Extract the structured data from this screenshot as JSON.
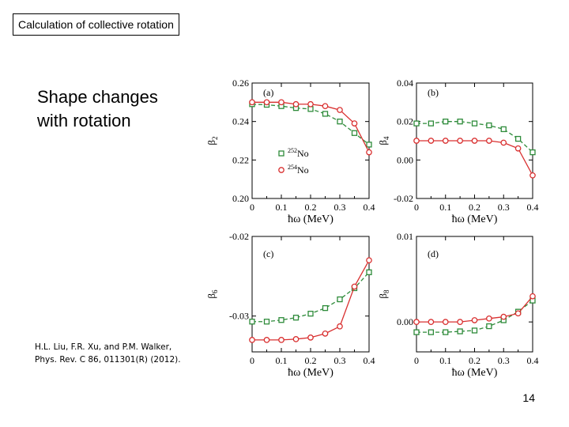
{
  "slide": {
    "header": "Calculation of collective rotation",
    "heading_line1": "Shape changes",
    "heading_line2": "with rotation",
    "citation_line1": "H.L. Liu, F.R. Xu, and P.M. Walker,",
    "citation_line2": "Phys. Rev. C 86, 011301(R) (2012).",
    "page_number": "14"
  },
  "colors": {
    "no252": "#2e8b3a",
    "no254": "#d93030"
  },
  "chart_data": [
    {
      "type": "line",
      "panel": "(a)",
      "ylabel_main": "β",
      "ylabel_sub": "2",
      "xlabel": "ħω (MeV)",
      "x": [
        0,
        0.05,
        0.1,
        0.15,
        0.2,
        0.25,
        0.3,
        0.35,
        0.4
      ],
      "xticks": [
        "0",
        "0.1",
        "0.2",
        "0.3",
        "0.4"
      ],
      "xlim": [
        0,
        0.4
      ],
      "ylim": [
        0.2,
        0.26
      ],
      "yticks": [
        0.2,
        0.22,
        0.24,
        0.26
      ],
      "ytick_labels": [
        "0.20",
        "0.22",
        "0.24",
        "0.26"
      ],
      "legend": [
        {
          "mass": "252",
          "element": "No",
          "marker": "square",
          "style": "dashed"
        },
        {
          "mass": "254",
          "element": "No",
          "marker": "circle",
          "style": "solid"
        }
      ],
      "series": [
        {
          "name": "252No",
          "marker": "square",
          "style": "dashed",
          "values": [
            0.249,
            0.2487,
            0.248,
            0.247,
            0.2465,
            0.244,
            0.24,
            0.234,
            0.228
          ]
        },
        {
          "name": "254No",
          "marker": "circle",
          "style": "solid",
          "values": [
            0.25,
            0.25,
            0.25,
            0.249,
            0.249,
            0.248,
            0.246,
            0.239,
            0.224
          ]
        }
      ]
    },
    {
      "type": "line",
      "panel": "(b)",
      "ylabel_main": "β",
      "ylabel_sub": "4",
      "xlabel": "ħω (MeV)",
      "x": [
        0,
        0.05,
        0.1,
        0.15,
        0.2,
        0.25,
        0.3,
        0.35,
        0.4
      ],
      "xticks": [
        "0",
        "0.1",
        "0.2",
        "0.3",
        "0.4"
      ],
      "xlim": [
        0,
        0.4
      ],
      "ylim": [
        -0.02,
        0.04
      ],
      "yticks": [
        -0.02,
        0.0,
        0.02,
        0.04
      ],
      "ytick_labels": [
        "-0.02",
        "0.00",
        "0.02",
        "0.04"
      ],
      "series": [
        {
          "name": "252No",
          "marker": "square",
          "style": "dashed",
          "values": [
            0.019,
            0.019,
            0.02,
            0.02,
            0.019,
            0.018,
            0.016,
            0.011,
            0.004
          ]
        },
        {
          "name": "254No",
          "marker": "circle",
          "style": "solid",
          "values": [
            0.01,
            0.01,
            0.01,
            0.01,
            0.01,
            0.01,
            0.009,
            0.006,
            -0.008
          ]
        }
      ]
    },
    {
      "type": "line",
      "panel": "(c)",
      "ylabel_main": "β",
      "ylabel_sub": "6",
      "xlabel": "ħω (MeV)",
      "x": [
        0,
        0.05,
        0.1,
        0.15,
        0.2,
        0.25,
        0.3,
        0.35,
        0.4
      ],
      "xticks": [
        "0",
        "0.1",
        "0.2",
        "0.3",
        "0.4"
      ],
      "xlim": [
        0,
        0.4
      ],
      "ylim": [
        -0.0345,
        -0.02
      ],
      "yticks": [
        -0.03,
        -0.02
      ],
      "ytick_labels": [
        "-0.03",
        "-0.02"
      ],
      "series": [
        {
          "name": "252No",
          "marker": "square",
          "style": "dashed",
          "values": [
            -0.0307,
            -0.0307,
            -0.0305,
            -0.0302,
            -0.0297,
            -0.029,
            -0.0279,
            -0.0265,
            -0.0245
          ]
        },
        {
          "name": "254No",
          "marker": "circle",
          "style": "solid",
          "values": [
            -0.033,
            -0.033,
            -0.033,
            -0.0329,
            -0.0327,
            -0.0322,
            -0.0313,
            -0.0263,
            -0.023
          ]
        }
      ]
    },
    {
      "type": "line",
      "panel": "(d)",
      "ylabel_main": "β",
      "ylabel_sub": "8",
      "xlabel": "ħω (MeV)",
      "x": [
        0,
        0.05,
        0.1,
        0.15,
        0.2,
        0.25,
        0.3,
        0.35,
        0.4
      ],
      "xticks": [
        "0",
        "0.1",
        "0.2",
        "0.3",
        "0.4"
      ],
      "xlim": [
        0,
        0.4
      ],
      "ylim": [
        -0.0035,
        0.01
      ],
      "yticks": [
        0.0,
        0.01
      ],
      "ytick_labels": [
        "0.00",
        "0.01"
      ],
      "series": [
        {
          "name": "252No",
          "marker": "square",
          "style": "dashed",
          "values": [
            -0.0012,
            -0.0012,
            -0.0012,
            -0.0011,
            -0.001,
            -0.0005,
            0.0002,
            0.0012,
            0.0025
          ]
        },
        {
          "name": "254No",
          "marker": "circle",
          "style": "solid",
          "values": [
            0.0,
            0.0,
            0.0,
            0.0,
            0.0002,
            0.0004,
            0.0006,
            0.001,
            0.003
          ]
        }
      ]
    }
  ]
}
